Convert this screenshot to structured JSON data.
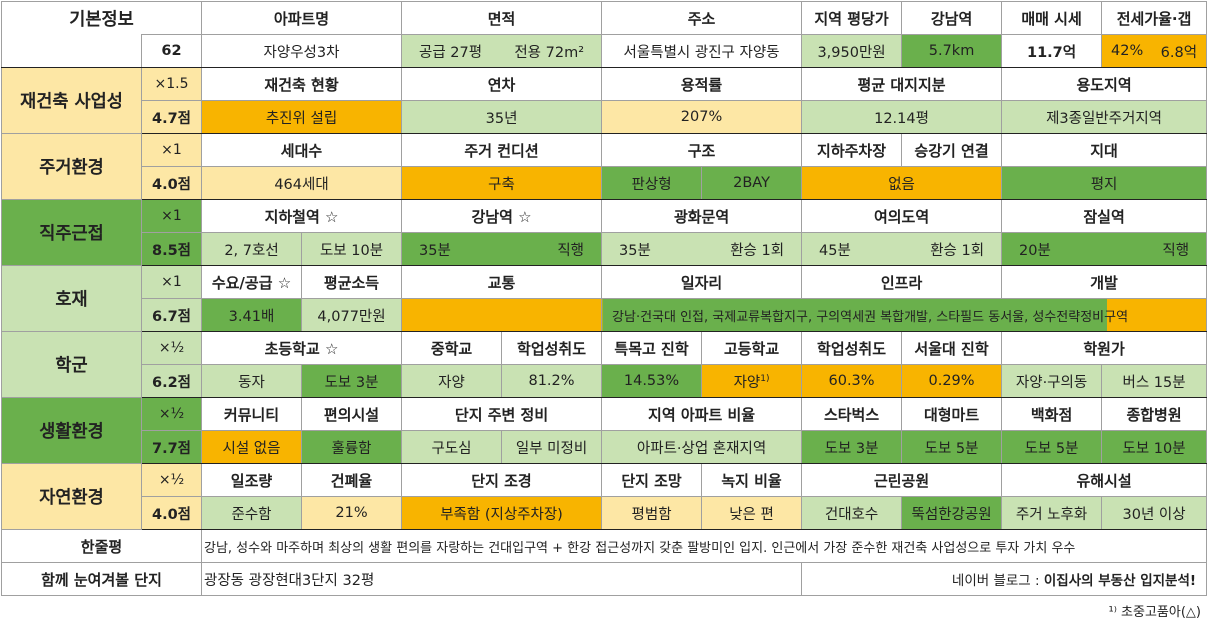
{
  "basic": {
    "label": "기본정보",
    "id": "62",
    "headers": [
      "아파트명",
      "면적",
      "주소",
      "지역 평당가",
      "강남역",
      "매매 시세",
      "전세가율·갭"
    ],
    "apt_name": "자양우성3차",
    "area_supply": "공급 27평",
    "area_exclusive": "전용 72m²",
    "address": "서울특별시 광진구 자양동",
    "price_per_pyeong": "3,950만원",
    "gangnam_dist": "5.7km",
    "sale_price": "11.7억",
    "jeonse_rate": "42%",
    "gap": "6.8억"
  },
  "recon": {
    "label": "재건축 사업성",
    "mult": "×1.5",
    "score": "4.7점",
    "headers": [
      "재건축 현황",
      "연차",
      "용적률",
      "평균 대지지분",
      "용도지역"
    ],
    "values": [
      "추진위 설립",
      "35년",
      "207%",
      "12.14평",
      "제3종일반주거지역"
    ]
  },
  "living": {
    "label": "주거환경",
    "mult": "×1",
    "score": "4.0점",
    "headers": [
      "세대수",
      "주거 컨디션",
      "구조",
      "지하주차장",
      "승강기 연결",
      "지대"
    ],
    "values": [
      "464세대",
      "구축",
      "판상형",
      "2BAY",
      "없음",
      "평지"
    ]
  },
  "commute": {
    "label": "직주근접",
    "mult": "×1",
    "score": "8.5점",
    "headers": [
      "지하철역 ☆",
      "강남역 ☆",
      "광화문역",
      "여의도역",
      "잠실역"
    ],
    "values": [
      [
        "2, 7호선",
        "도보 10분"
      ],
      [
        "35분",
        "직행"
      ],
      [
        "35분",
        "환승 1회"
      ],
      [
        "45분",
        "환승 1회"
      ],
      [
        "20분",
        "직행"
      ]
    ]
  },
  "hojae": {
    "label": "호재",
    "mult": "×1",
    "score": "6.7점",
    "headers": [
      "수요/공급 ☆",
      "평균소득",
      "교통",
      "일자리",
      "인프라",
      "개발"
    ],
    "supply": "3.41배",
    "income": "4,077만원",
    "traffic": "",
    "jobs_text": "강남·건국대 인접, 국제교류복합지구, 구의역세권 복합개발, 스타필드 동서울, 성수전략정비구역"
  },
  "school": {
    "label": "학군",
    "mult": "×½",
    "score": "6.2점",
    "headers": [
      "초등학교 ☆",
      "중학교",
      "학업성취도",
      "특목고 진학",
      "고등학교",
      "학업성취도",
      "서울대 진학",
      "학원가"
    ],
    "values": [
      "동자",
      "도보 3분",
      "자양",
      "81.2%",
      "14.53%",
      "자양",
      "60.3%",
      "0.29%",
      "자양·구의동",
      "버스 15분"
    ],
    "footnote_mark": "1)"
  },
  "life": {
    "label": "생활환경",
    "mult": "×½",
    "score": "7.7점",
    "headers": [
      "커뮤니티",
      "편의시설",
      "단지 주변 정비",
      "지역 아파트 비율",
      "스타벅스",
      "대형마트",
      "백화점",
      "종합병원"
    ],
    "values": [
      "시설 없음",
      "훌륭함",
      "구도심",
      "일부 미정비",
      "아파트·상업 혼재지역",
      "도보 3분",
      "도보 5분",
      "도보 5분",
      "도보 10분"
    ]
  },
  "nature": {
    "label": "자연환경",
    "mult": "×½",
    "score": "4.0점",
    "headers": [
      "일조량",
      "건폐율",
      "단지 조경",
      "단지 조망",
      "녹지 비율",
      "근린공원",
      "유해시설"
    ],
    "values": [
      "준수함",
      "21%",
      "부족함 (지상주차장)",
      "평범함",
      "낮은 편",
      "건대호수",
      "뚝섬한강공원",
      "주거 노후화",
      "30년 이상"
    ]
  },
  "summary": {
    "label": "한줄평",
    "text": "강남, 성수와 마주하며 최상의 생활 편의를 자랑하는 건대입구역 + 한강 접근성까지 갖춘 팔방미인 입지. 인근에서 가장 준수한 재건축 사업성으로 투자 가치 우수"
  },
  "similar": {
    "label": "함께 눈여겨볼 단지",
    "text": "광장동 광장현대3단지 32평",
    "blog_prefix": "네이버 블로그 : ",
    "blog_name": "이집사의 부동산 입지분석!"
  },
  "footnote": "¹⁾ 초중고품아(△)"
}
